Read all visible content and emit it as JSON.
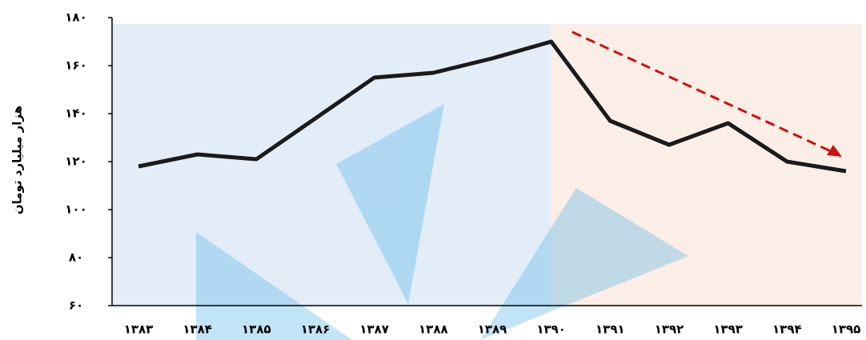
{
  "chart_data": {
    "type": "line",
    "y_axis_label": "هزار میلیارد تومان",
    "categories": [
      "۱۳۸۳",
      "۱۳۸۴",
      "۱۳۸۵",
      "۱۳۸۶",
      "۱۳۸۷",
      "۱۳۸۸",
      "۱۳۸۹",
      "۱۳۹۰",
      "۱۳۹۱",
      "۱۳۹۲",
      "۱۳۹۳",
      "۱۳۹۴",
      "۱۳۹۵"
    ],
    "values": [
      118,
      123,
      121,
      138,
      155,
      157,
      163,
      170,
      137,
      127,
      136,
      120,
      116
    ],
    "color": "#1a1a1a",
    "ylim": [
      60,
      180
    ],
    "yticks": [
      {
        "value": 60,
        "label": "۶۰"
      },
      {
        "value": 80,
        "label": "۸۰"
      },
      {
        "value": 100,
        "label": "۱۰۰"
      },
      {
        "value": 120,
        "label": "۱۲۰"
      },
      {
        "value": 140,
        "label": "۱۴۰"
      },
      {
        "value": 160,
        "label": "۱۶۰"
      },
      {
        "value": 180,
        "label": "۱۸۰"
      }
    ],
    "grid": false
  }
}
